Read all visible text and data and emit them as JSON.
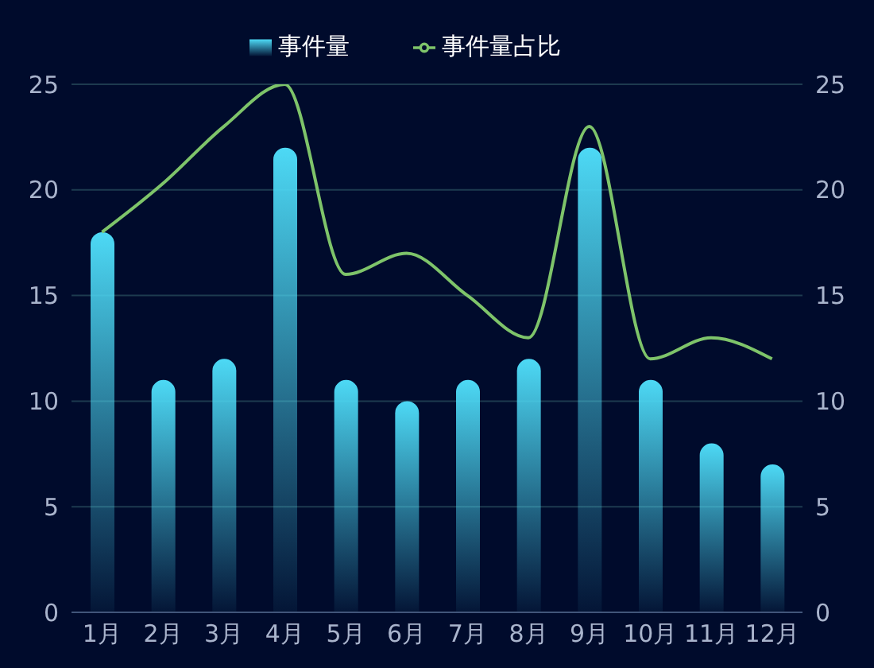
{
  "chart_data": {
    "type": "bar",
    "categories": [
      "1月",
      "2月",
      "3月",
      "4月",
      "5月",
      "6月",
      "7月",
      "8月",
      "9月",
      "10月",
      "11月",
      "12月"
    ],
    "series": [
      {
        "name": "事件量",
        "color": "#4dd9f5",
        "values": [
          18,
          11,
          12,
          22,
          11,
          10,
          11,
          12,
          22,
          11,
          8,
          7
        ]
      },
      {
        "name": "事件量占比",
        "type": "line",
        "color": "#7ec46a",
        "marker": "none",
        "values": [
          18,
          20.3,
          23,
          25,
          16,
          17,
          15,
          13,
          23,
          12,
          13,
          12
        ]
      }
    ],
    "ylim": [
      0,
      25
    ],
    "yticks": [
      0,
      5,
      10,
      15,
      20,
      25
    ],
    "y2lim": [
      0,
      25
    ],
    "y2ticks": [
      0,
      5,
      10,
      15,
      20,
      25
    ],
    "grid": "y",
    "legend": "top"
  }
}
